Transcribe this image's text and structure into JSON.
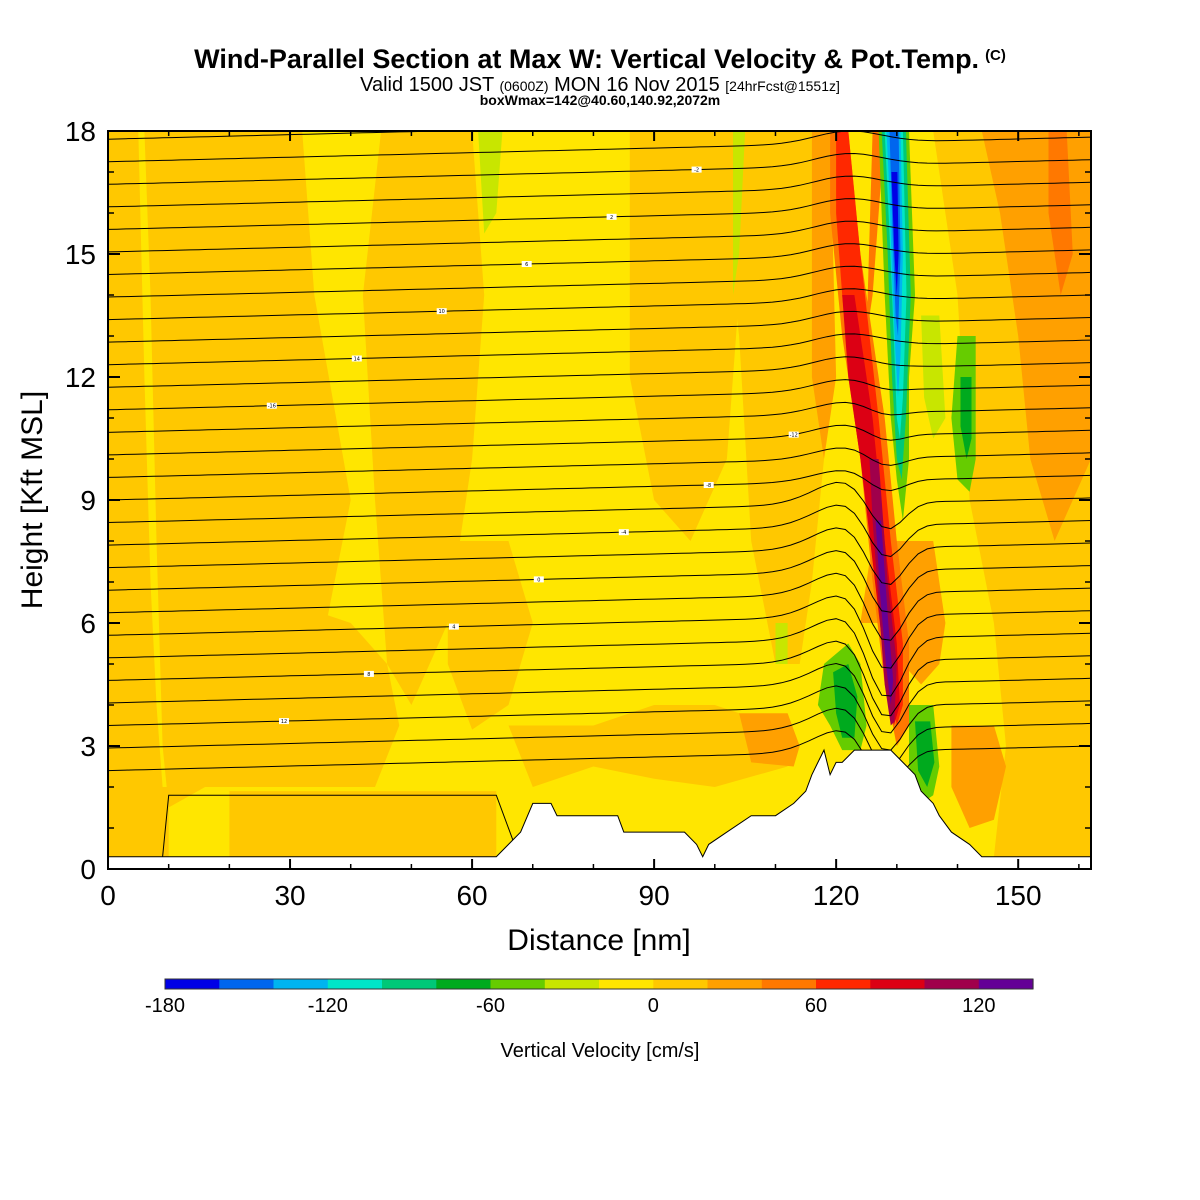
{
  "chart_data": {
    "type": "heatmap",
    "title": "Wind-Parallel Section at Max W: Vertical Velocity & Pot.Temp.",
    "title_mark": "(C)",
    "subtitle_main": "Valid 1500 JST",
    "subtitle_z": "(0600Z)",
    "subtitle_date": "MON 16 Nov 2015",
    "subtitle_fcst": "[24hrFcst@1551z]",
    "box_info": "boxWmax=142@40.60,140.92,2072m",
    "xlabel": "Distance [nm]",
    "ylabel": "Height [Kft MSL]",
    "xlim": [
      0,
      162
    ],
    "ylim": [
      0,
      18
    ],
    "x_ticks": [
      "0",
      "30",
      "60",
      "90",
      "120",
      "150"
    ],
    "y_ticks": [
      "0",
      "3",
      "6",
      "9",
      "12",
      "15",
      "18"
    ],
    "colorbar": {
      "title": "Vertical Velocity [cm/s]",
      "tick_labels": [
        "-180",
        "-120",
        "-60",
        "0",
        "60",
        "120"
      ],
      "colors": [
        "#0000e6",
        "#0066ee",
        "#00b4f0",
        "#00e6c8",
        "#00c878",
        "#00aa1e",
        "#66cc00",
        "#c8e600",
        "#ffe600",
        "#ffc800",
        "#ffa000",
        "#ff7800",
        "#ff2800",
        "#dc0014",
        "#a0004b",
        "#640096"
      ]
    },
    "terrain_top_kft": [
      [
        0,
        0.3
      ],
      [
        64,
        0.3
      ],
      [
        66,
        0.6
      ],
      [
        68,
        0.9
      ],
      [
        70,
        1.6
      ],
      [
        73,
        1.6
      ],
      [
        74,
        1.3
      ],
      [
        84,
        1.3
      ],
      [
        85,
        0.9
      ],
      [
        88,
        0.9
      ],
      [
        90,
        0.9
      ],
      [
        95,
        0.9
      ],
      [
        97,
        0.6
      ],
      [
        98,
        0.3
      ],
      [
        99,
        0.6
      ],
      [
        102,
        0.9
      ],
      [
        106,
        1.3
      ],
      [
        110,
        1.3
      ],
      [
        113,
        1.6
      ],
      [
        115,
        1.9
      ],
      [
        116,
        2.3
      ],
      [
        117,
        2.6
      ],
      [
        118,
        2.9
      ],
      [
        119,
        2.3
      ],
      [
        120,
        2.6
      ],
      [
        121,
        2.6
      ],
      [
        123,
        2.9
      ],
      [
        129,
        2.9
      ],
      [
        131,
        2.6
      ],
      [
        133,
        2.3
      ],
      [
        134,
        1.9
      ],
      [
        136,
        1.6
      ],
      [
        137,
        1.3
      ],
      [
        139,
        0.9
      ],
      [
        142,
        0.6
      ],
      [
        144,
        0.3
      ],
      [
        162,
        0.3
      ]
    ],
    "contour_labels": [
      "16",
      "14",
      "12",
      "10",
      "8",
      "6",
      "4",
      "2",
      "0",
      "-2",
      "-4",
      "-6",
      "-8",
      "-10",
      "-12",
      "-14",
      "-16"
    ]
  },
  "colors": {
    "background": "#ffffff",
    "field_base": "#ffe600",
    "field_light_orange": "#ffc800"
  }
}
